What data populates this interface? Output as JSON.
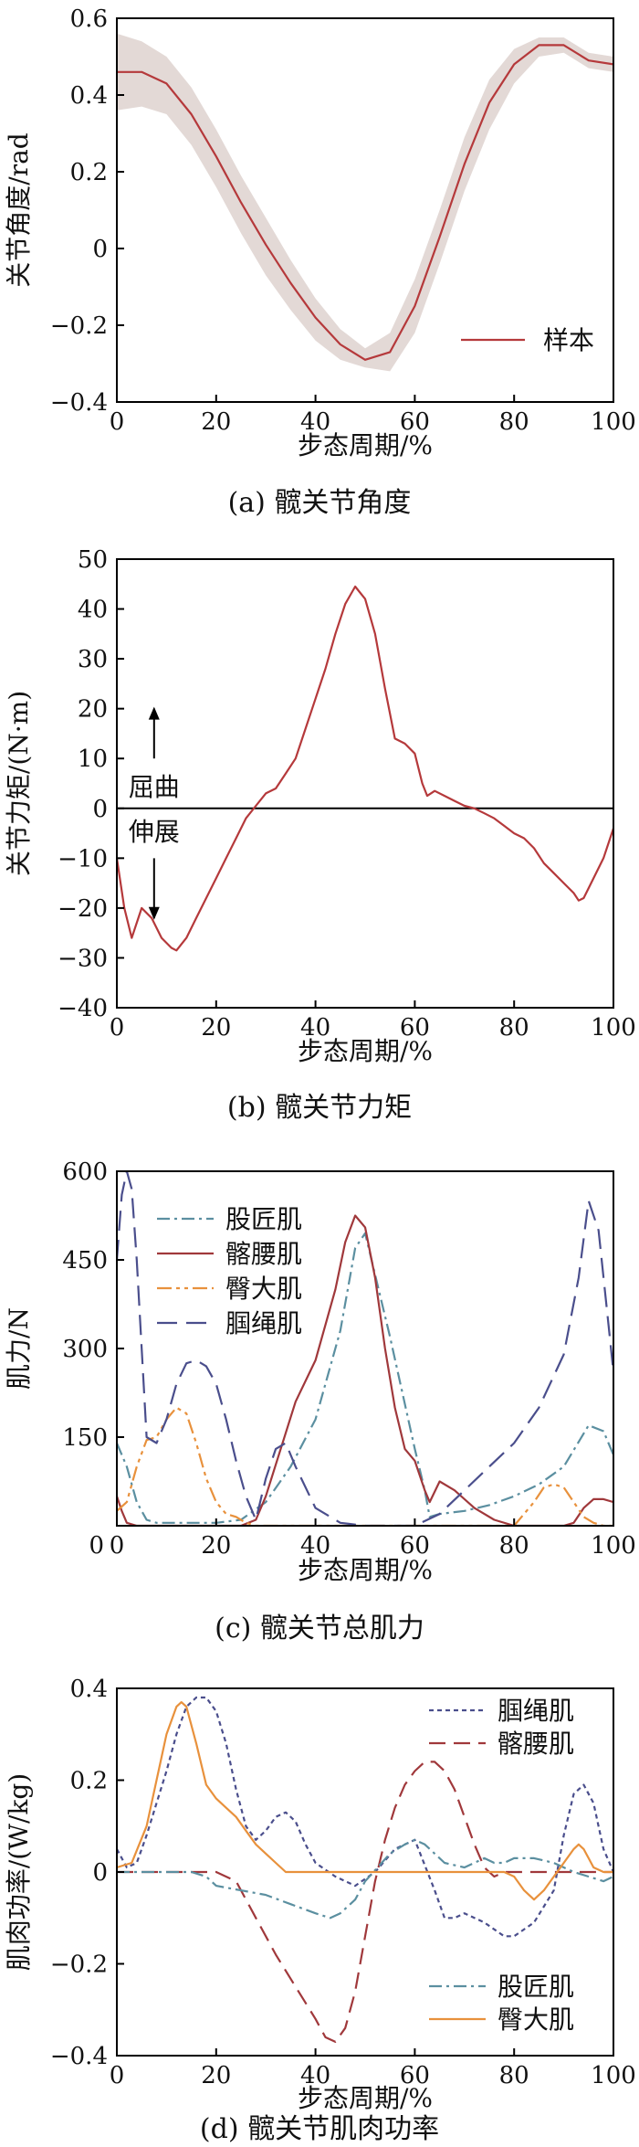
{
  "chart_data": [
    {
      "type": "line",
      "caption": "(a)  髋关节角度",
      "xlabel": "步态周期/%",
      "ylabel": "关节角度/rad",
      "xlim": [
        0,
        100
      ],
      "ylim": [
        -0.4,
        0.6
      ],
      "xticks": [
        0,
        20,
        40,
        60,
        80,
        100
      ],
      "yticks": [
        -0.4,
        -0.2,
        0,
        0.2,
        0.4,
        0.6
      ],
      "xtick_labels": [
        "0",
        "20",
        "40",
        "60",
        "80",
        "100"
      ],
      "ytick_labels": [
        "−0.4",
        "−0.2",
        "0",
        "0.2",
        "0.4",
        "0.6"
      ],
      "legend_position": "bottom-right",
      "series": [
        {
          "name": "样本",
          "color": "#b5393b",
          "x": [
            0,
            5,
            10,
            15,
            20,
            25,
            30,
            35,
            40,
            45,
            50,
            55,
            60,
            65,
            70,
            75,
            80,
            85,
            90,
            95,
            100
          ],
          "y": [
            0.46,
            0.46,
            0.43,
            0.35,
            0.24,
            0.12,
            0.01,
            -0.09,
            -0.18,
            -0.25,
            -0.29,
            -0.27,
            -0.15,
            0.03,
            0.22,
            0.38,
            0.48,
            0.53,
            0.53,
            0.49,
            0.48
          ],
          "band_upper": [
            0.56,
            0.54,
            0.5,
            0.42,
            0.31,
            0.19,
            0.08,
            -0.03,
            -0.13,
            -0.21,
            -0.26,
            -0.22,
            -0.08,
            0.1,
            0.29,
            0.44,
            0.52,
            0.55,
            0.55,
            0.51,
            0.5
          ],
          "band_lower": [
            0.36,
            0.37,
            0.35,
            0.27,
            0.16,
            0.04,
            -0.07,
            -0.16,
            -0.24,
            -0.29,
            -0.31,
            -0.32,
            -0.22,
            -0.04,
            0.15,
            0.31,
            0.43,
            0.5,
            0.51,
            0.47,
            0.46
          ]
        }
      ]
    },
    {
      "type": "line",
      "caption": "(b)  髋关节力矩",
      "xlabel": "步态周期/%",
      "ylabel": "关节力矩/(N·m)",
      "xlim": [
        0,
        100
      ],
      "ylim": [
        -40,
        50
      ],
      "xticks": [
        0,
        20,
        40,
        60,
        80,
        100
      ],
      "yticks": [
        -40,
        -30,
        -20,
        -10,
        0,
        10,
        20,
        30,
        40,
        50
      ],
      "xtick_labels": [
        "0",
        "20",
        "40",
        "60",
        "80",
        "100"
      ],
      "ytick_labels": [
        "−40",
        "−30",
        "−20",
        "−10",
        "0",
        "10",
        "20",
        "30",
        "40",
        "50"
      ],
      "annotations": {
        "flexion": "屈曲",
        "extension": "伸展"
      },
      "series": [
        {
          "color": "#b5393b",
          "x": [
            0,
            1.5,
            3,
            5,
            7,
            9,
            11,
            12,
            14,
            16,
            18,
            20,
            22,
            24,
            26,
            28,
            30,
            32,
            34,
            36,
            38,
            40,
            42,
            44,
            46,
            48,
            50,
            52,
            54,
            56,
            58,
            60,
            61.5,
            62.5,
            64,
            66,
            68,
            70,
            72,
            74,
            76,
            78,
            80,
            82,
            84,
            86,
            88,
            90,
            92,
            93,
            94,
            96,
            98,
            100
          ],
          "y": [
            -10,
            -20,
            -26,
            -20,
            -22,
            -26,
            -28,
            -28.5,
            -26,
            -22,
            -18,
            -14,
            -10,
            -6,
            -2,
            0.5,
            3,
            4,
            7,
            10,
            16,
            22,
            28,
            35,
            41,
            44.5,
            42,
            35,
            24,
            14,
            13,
            11,
            5,
            2.5,
            3.5,
            2.5,
            1.5,
            0.5,
            0,
            -1,
            -2,
            -3.5,
            -5,
            -6,
            -8,
            -11,
            -13,
            -15,
            -17,
            -18.5,
            -18,
            -14,
            -10,
            -4
          ]
        }
      ]
    },
    {
      "type": "line",
      "caption": "(c)  髋关节总肌力",
      "xlabel": "步态周期/%",
      "ylabel": "肌力/N",
      "xlim": [
        0,
        100
      ],
      "ylim": [
        0,
        600
      ],
      "xticks": [
        0,
        20,
        40,
        60,
        80,
        100
      ],
      "yticks": [
        150,
        300,
        450,
        600
      ],
      "xtick_labels": [
        "0",
        "20",
        "40",
        "60",
        "80",
        "100"
      ],
      "ytick_labels": [
        "150",
        "300",
        "450",
        "600"
      ],
      "legend_position": "top-left",
      "series": [
        {
          "name": "股匠肌",
          "color": "#5b8fa0",
          "dash": "14,5,3,5",
          "x": [
            0,
            2,
            4,
            6,
            8,
            10,
            15,
            20,
            25,
            30,
            35,
            40,
            45,
            48,
            50,
            55,
            60,
            62,
            63,
            65,
            70,
            75,
            80,
            85,
            90,
            95,
            98,
            100
          ],
          "y": [
            140,
            100,
            40,
            10,
            5,
            5,
            5,
            5,
            10,
            40,
            100,
            180,
            330,
            470,
            495,
            320,
            130,
            60,
            15,
            20,
            25,
            35,
            50,
            70,
            100,
            170,
            160,
            120
          ]
        },
        {
          "name": "髂腰肌",
          "color": "#a0383b",
          "dash": "",
          "x": [
            0,
            1,
            2,
            4,
            10,
            20,
            25,
            28,
            30,
            33,
            36,
            40,
            44,
            46,
            48,
            50,
            52,
            54,
            56,
            58,
            60,
            62,
            63,
            65,
            68,
            72,
            76,
            80,
            85,
            90,
            92,
            94,
            96,
            98,
            100
          ],
          "y": [
            50,
            25,
            5,
            0,
            0,
            0,
            0,
            10,
            50,
            130,
            210,
            280,
            400,
            480,
            525,
            505,
            420,
            300,
            200,
            130,
            110,
            60,
            40,
            75,
            60,
            30,
            10,
            0,
            0,
            0,
            5,
            30,
            45,
            45,
            40
          ]
        },
        {
          "name": "臀大肌",
          "color": "#e8913c",
          "dash": "16,5,4,5,4,5",
          "x": [
            0,
            2,
            4,
            6,
            8,
            10,
            12,
            14,
            16,
            18,
            20,
            22,
            24,
            26,
            28,
            30,
            40,
            50,
            60,
            70,
            80,
            84,
            86,
            88,
            90,
            92,
            94,
            96,
            98,
            100
          ],
          "y": [
            25,
            40,
            100,
            145,
            150,
            180,
            200,
            190,
            140,
            80,
            40,
            20,
            15,
            5,
            0,
            0,
            0,
            0,
            0,
            0,
            0,
            40,
            65,
            70,
            65,
            40,
            15,
            5,
            0,
            0
          ]
        },
        {
          "name": "腘绳肌",
          "color": "#4a4e8c",
          "dash": "22,10",
          "x": [
            0,
            1,
            2,
            3,
            4,
            5,
            6,
            8,
            10,
            12,
            14,
            16,
            18,
            20,
            22,
            24,
            26,
            28,
            30,
            32,
            34,
            36,
            40,
            45,
            50,
            55,
            60,
            65,
            70,
            75,
            80,
            85,
            90,
            93,
            95,
            97,
            99,
            100
          ],
          "y": [
            450,
            560,
            600,
            570,
            450,
            300,
            150,
            140,
            180,
            240,
            275,
            280,
            270,
            240,
            180,
            110,
            50,
            10,
            80,
            130,
            140,
            100,
            30,
            5,
            0,
            0,
            0,
            20,
            60,
            100,
            140,
            200,
            290,
            420,
            550,
            500,
            340,
            260
          ]
        }
      ]
    },
    {
      "type": "line",
      "caption": "(d)  髋关节肌肉功率",
      "xlabel": "步态周期/%",
      "ylabel": "肌肉功率/(W/kg)",
      "xlim": [
        0,
        100
      ],
      "ylim": [
        -0.4,
        0.4
      ],
      "xticks": [
        0,
        20,
        40,
        60,
        80,
        100
      ],
      "yticks": [
        -0.4,
        -0.2,
        0,
        0.2,
        0.4
      ],
      "xtick_labels": [
        "0",
        "20",
        "40",
        "60",
        "80",
        "100"
      ],
      "ytick_labels": [
        "−0.4",
        "−0.2",
        "0",
        "0.2",
        "0.4"
      ],
      "legend_upper_position": "top-right",
      "legend_lower_position": "bottom-right",
      "series": [
        {
          "name": "腘绳肌",
          "color": "#4a4e8c",
          "dash": "5,4",
          "legend_group": "upper",
          "x": [
            0,
            2,
            4,
            6,
            8,
            10,
            12,
            14,
            16,
            18,
            20,
            22,
            24,
            26,
            28,
            30,
            32,
            34,
            36,
            38,
            40,
            44,
            48,
            52,
            56,
            60,
            64,
            66,
            68,
            70,
            74,
            78,
            80,
            84,
            88,
            90,
            92,
            94,
            96,
            98,
            100
          ],
          "y": [
            0.05,
            0.01,
            0.02,
            0.08,
            0.15,
            0.22,
            0.3,
            0.36,
            0.38,
            0.38,
            0.35,
            0.28,
            0.18,
            0.1,
            0.07,
            0.09,
            0.12,
            0.13,
            0.11,
            0.06,
            0.02,
            -0.01,
            -0.03,
            0,
            0.05,
            0.07,
            -0.04,
            -0.1,
            -0.1,
            -0.09,
            -0.11,
            -0.14,
            -0.14,
            -0.11,
            -0.04,
            0.08,
            0.17,
            0.19,
            0.15,
            0.05,
            0
          ]
        },
        {
          "name": "髂腰肌",
          "color": "#a0383b",
          "dash": "18,9",
          "legend_group": "upper",
          "x": [
            0,
            10,
            20,
            24,
            28,
            32,
            36,
            40,
            42,
            44,
            46,
            48,
            50,
            52,
            54,
            56,
            58,
            60,
            62,
            64,
            66,
            68,
            70,
            72,
            74,
            76,
            78,
            80,
            85,
            90,
            95,
            100
          ],
          "y": [
            0,
            0,
            0,
            -0.02,
            -0.1,
            -0.18,
            -0.25,
            -0.32,
            -0.36,
            -0.37,
            -0.34,
            -0.26,
            -0.14,
            -0.02,
            0.07,
            0.14,
            0.19,
            0.22,
            0.24,
            0.24,
            0.22,
            0.18,
            0.12,
            0.06,
            0.01,
            -0.01,
            0,
            0,
            0,
            0,
            0,
            0
          ]
        },
        {
          "name": "股匠肌",
          "color": "#5b8fa0",
          "dash": "14,5,3,5",
          "legend_group": "lower",
          "x": [
            0,
            10,
            15,
            18,
            20,
            25,
            30,
            35,
            40,
            43,
            45,
            48,
            50,
            55,
            58,
            60,
            62,
            64,
            66,
            70,
            72,
            74,
            76,
            78,
            80,
            84,
            88,
            90,
            92,
            95,
            98,
            100
          ],
          "y": [
            0,
            0,
            0,
            -0.01,
            -0.03,
            -0.04,
            -0.05,
            -0.07,
            -0.09,
            -0.1,
            -0.09,
            -0.06,
            -0.02,
            0.04,
            0.06,
            0.07,
            0.06,
            0.04,
            0.02,
            0.01,
            0.02,
            0.03,
            0.02,
            0.02,
            0.03,
            0.03,
            0.02,
            0.01,
            0,
            -0.01,
            -0.02,
            -0.01
          ]
        },
        {
          "name": "臀大肌",
          "color": "#e8913c",
          "dash": "",
          "legend_group": "lower",
          "x": [
            0,
            3,
            6,
            8,
            10,
            12,
            13,
            14,
            16,
            18,
            20,
            22,
            24,
            26,
            28,
            30,
            32,
            34,
            40,
            50,
            60,
            70,
            76,
            78,
            80,
            82,
            84,
            86,
            88,
            90,
            92,
            93,
            94,
            95,
            96,
            98,
            100
          ],
          "y": [
            0.01,
            0.02,
            0.1,
            0.2,
            0.3,
            0.36,
            0.37,
            0.36,
            0.28,
            0.19,
            0.16,
            0.14,
            0.12,
            0.09,
            0.06,
            0.04,
            0.02,
            0,
            0,
            0,
            0,
            0,
            0,
            0,
            -0.01,
            -0.04,
            -0.06,
            -0.04,
            -0.01,
            0.02,
            0.05,
            0.06,
            0.05,
            0.03,
            0.01,
            0,
            0
          ]
        }
      ]
    }
  ]
}
